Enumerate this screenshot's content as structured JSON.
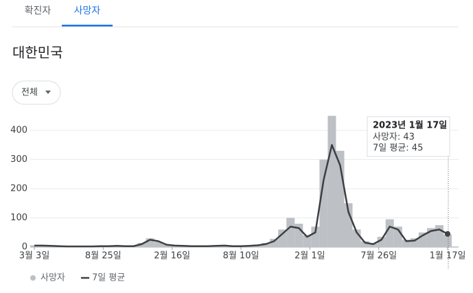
{
  "tabs": [
    "확진자",
    "사망자"
  ],
  "region": "대한민국",
  "filter": "전체",
  "tooltip": {
    "date": "2023년 1월 17일",
    "lines": [
      "사망자: 43",
      "7일 평균: 45"
    ]
  },
  "chart_data": {
    "type": "bar-line",
    "x": [
      0,
      21,
      42,
      63,
      84,
      105,
      126,
      147,
      168,
      189,
      210,
      231,
      252,
      273,
      294,
      315,
      336,
      357,
      378,
      399,
      420,
      441,
      462,
      483,
      504,
      525,
      546,
      567,
      588,
      609,
      630,
      651,
      672,
      693,
      714,
      735,
      756,
      777,
      798,
      819,
      840,
      861,
      882,
      903,
      924,
      945,
      966,
      987,
      1008,
      1029,
      1050
    ],
    "series": [
      {
        "name": "사망자",
        "color": "#bdc1c6",
        "values": [
          6,
          4,
          5,
          2,
          3,
          2,
          1,
          3,
          2,
          4,
          5,
          3,
          4,
          14,
          30,
          18,
          9,
          4,
          5,
          2,
          3,
          4,
          3,
          6,
          3,
          2,
          5,
          8,
          14,
          28,
          60,
          100,
          80,
          40,
          70,
          300,
          450,
          330,
          150,
          60,
          20,
          12,
          35,
          95,
          70,
          25,
          30,
          50,
          65,
          75,
          43
        ]
      },
      {
        "name": "7일 평균",
        "color": "#3c4043",
        "values": [
          5,
          5,
          4,
          3,
          2,
          2,
          2,
          2,
          3,
          3,
          4,
          3,
          3,
          10,
          25,
          20,
          8,
          5,
          4,
          3,
          3,
          3,
          4,
          5,
          3,
          3,
          4,
          6,
          10,
          20,
          45,
          70,
          65,
          35,
          50,
          230,
          350,
          280,
          120,
          50,
          15,
          10,
          25,
          70,
          60,
          20,
          22,
          40,
          55,
          60,
          45
        ]
      }
    ],
    "xlim": [
      0,
      1050
    ],
    "xticks": [
      {
        "value": 0,
        "label": "3월 3일"
      },
      {
        "value": 175,
        "label": "8월 25일"
      },
      {
        "value": 350,
        "label": "2월 16일"
      },
      {
        "value": 525,
        "label": "8월 10일"
      },
      {
        "value": 700,
        "label": "2월 1일"
      },
      {
        "value": 875,
        "label": "7월 26일"
      },
      {
        "value": 1050,
        "label": "1월 17일"
      }
    ],
    "ylim": [
      0,
      450
    ],
    "yticks": [
      0,
      100,
      200,
      300,
      400
    ],
    "grid": true
  }
}
